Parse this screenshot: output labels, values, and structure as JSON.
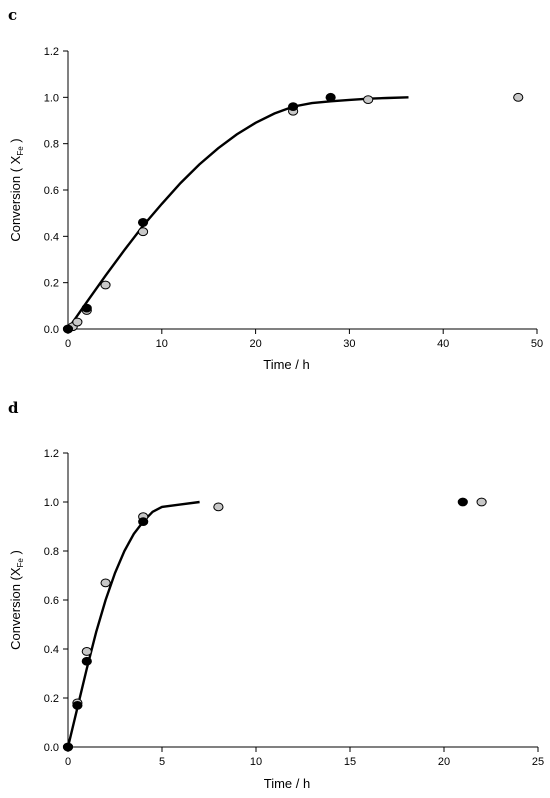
{
  "chart_data": [
    {
      "panel": "c",
      "type": "scatter",
      "xlabel": "Time / h",
      "ylabel": {
        "prefix": "Conversion ( X",
        "subscript": "Fe",
        "suffix": " )"
      },
      "xlim": [
        0,
        50
      ],
      "ylim": [
        0,
        1.2
      ],
      "xticks": [
        "0",
        "10",
        "20",
        "30",
        "40",
        "50"
      ],
      "yticks": [
        "0.0",
        "0.2",
        "0.4",
        "0.6",
        "0.8",
        "1.0",
        "1.2"
      ],
      "series": [
        {
          "marker_color": "#000000",
          "x": [
            0,
            2,
            8,
            24,
            28
          ],
          "y": [
            0.0,
            0.09,
            0.46,
            0.96,
            1.0
          ]
        },
        {
          "marker_color": "#c8c8c8",
          "x": [
            0,
            0.5,
            1,
            2,
            4,
            8,
            24,
            32,
            48
          ],
          "y": [
            0.0,
            0.01,
            0.03,
            0.08,
            0.19,
            0.42,
            0.94,
            0.99,
            1.0
          ]
        }
      ],
      "fit_curve": {
        "x": [
          0,
          2,
          4,
          6,
          8,
          10,
          12,
          14,
          16,
          18,
          20,
          22,
          24,
          26,
          28,
          30,
          32,
          34,
          36.3
        ],
        "y": [
          0.0,
          0.116,
          0.23,
          0.34,
          0.445,
          0.54,
          0.63,
          0.71,
          0.78,
          0.84,
          0.89,
          0.93,
          0.96,
          0.975,
          0.983,
          0.989,
          0.994,
          0.997,
          1.0
        ]
      }
    },
    {
      "panel": "d",
      "type": "scatter",
      "xlabel": "Time / h",
      "ylabel": {
        "prefix": "Conversion (X",
        "subscript": "Fe",
        "suffix": " )"
      },
      "xlim": [
        0,
        25
      ],
      "ylim": [
        0,
        1.2
      ],
      "xticks": [
        "0",
        "5",
        "10",
        "15",
        "20",
        "25"
      ],
      "yticks": [
        "0.0",
        "0.2",
        "0.4",
        "0.6",
        "0.8",
        "1.0",
        "1.2"
      ],
      "series": [
        {
          "marker_color": "#000000",
          "x": [
            0,
            0.5,
            1,
            4,
            21
          ],
          "y": [
            0.0,
            0.17,
            0.35,
            0.92,
            1.0
          ]
        },
        {
          "marker_color": "#c8c8c8",
          "x": [
            0,
            0.5,
            1,
            2,
            4,
            8,
            22
          ],
          "y": [
            0.0,
            0.18,
            0.39,
            0.67,
            0.94,
            0.98,
            1.0
          ]
        }
      ],
      "fit_curve": {
        "x": [
          0,
          0.5,
          1,
          1.5,
          2,
          2.5,
          3,
          3.5,
          4,
          4.5,
          5,
          6,
          7
        ],
        "y": [
          0.0,
          0.16,
          0.32,
          0.47,
          0.6,
          0.71,
          0.8,
          0.87,
          0.92,
          0.96,
          0.98,
          0.99,
          1.0
        ]
      }
    }
  ]
}
